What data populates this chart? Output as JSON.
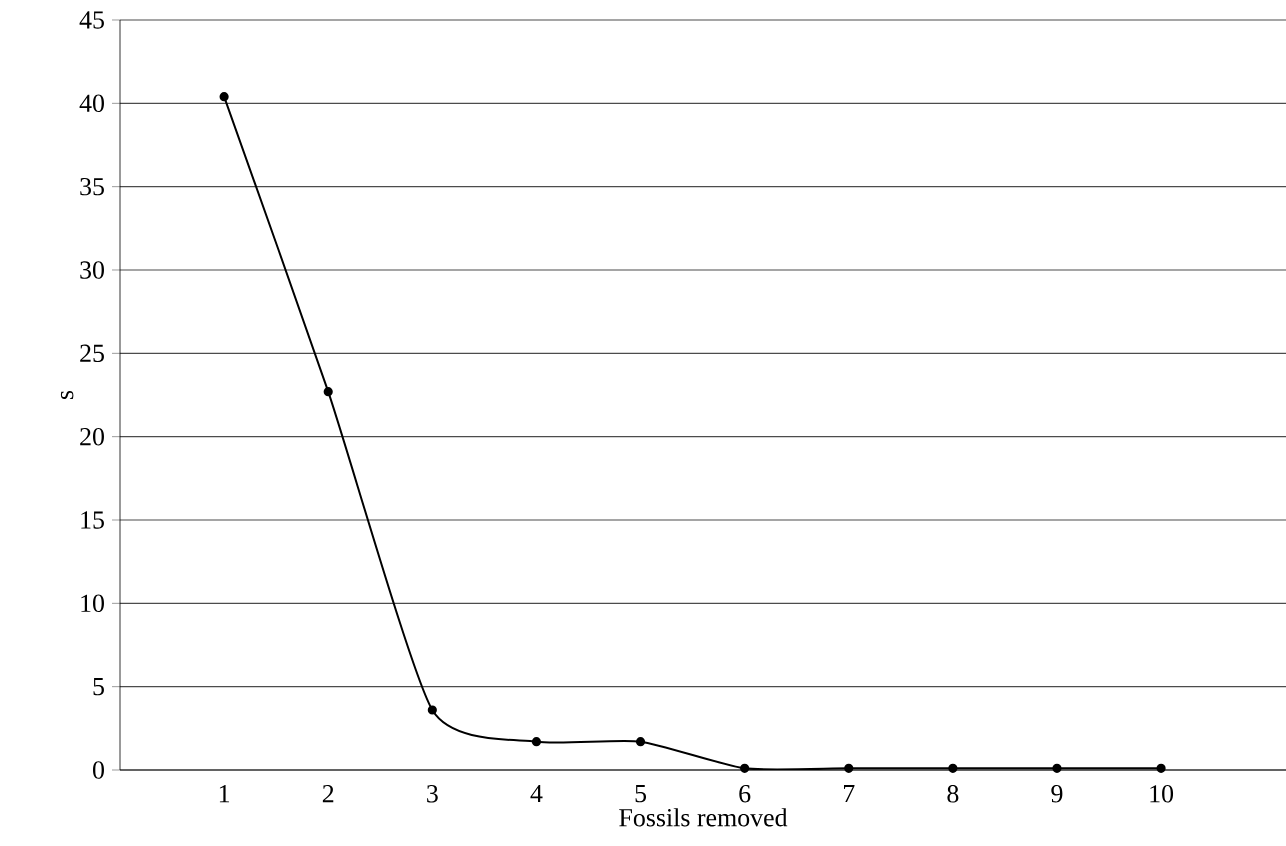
{
  "chart_data": {
    "type": "line",
    "xlabel": "Fossils removed",
    "ylabel": "s",
    "x": [
      1,
      2,
      3,
      4,
      5,
      6,
      7,
      8,
      9,
      10
    ],
    "values": [
      40.4,
      22.7,
      3.6,
      1.7,
      1.7,
      0.1,
      0.1,
      0.1,
      0.1,
      0.1
    ],
    "color": "#000000",
    "marker": "circle",
    "line_style": "solid",
    "grid": "y",
    "xlim": [
      0,
      11.2
    ],
    "xticks": [
      1,
      2,
      3,
      4,
      5,
      6,
      7,
      8,
      9,
      10
    ],
    "ylim": [
      0,
      45
    ],
    "yticks": [
      0,
      5,
      10,
      15,
      20,
      25,
      30,
      35,
      40,
      45
    ]
  }
}
